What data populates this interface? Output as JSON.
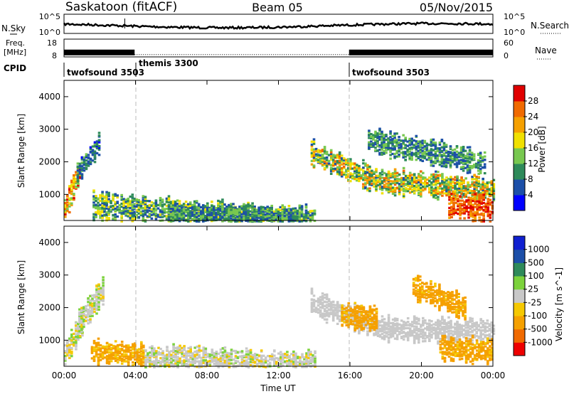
{
  "header": {
    "station": "Saskatoon (fitACF)",
    "beam": "Beam 05",
    "date": "05/Nov/2015"
  },
  "side_labels": {
    "nsky": "N.Sky",
    "nsky_ticks": [
      "10^5",
      "10^0"
    ],
    "nsearch": "N.Search",
    "nsearch_ticks": [
      "10^5",
      "10^0"
    ],
    "freq_line1": "Freq.",
    "freq_line2": "[MHz]",
    "freq_ticks": [
      "18",
      "8"
    ],
    "nave": "Nave",
    "nave_ticks": [
      "60",
      "0"
    ],
    "cpid": "CPID"
  },
  "cpid_segments": [
    {
      "name": "twofsound 3503",
      "start_hour": 0,
      "end_hour": 3.95
    },
    {
      "name": "themis 3300",
      "start_hour": 3.95,
      "end_hour": 15.95
    },
    {
      "name": "twofsound 3503",
      "start_hour": 15.95,
      "end_hour": 24
    }
  ],
  "colors": {
    "power": [
      "#0000ff",
      "#1c4fa8",
      "#2e8a5a",
      "#78c850",
      "#f0e000",
      "#f5a000",
      "#f06a00",
      "#e00000"
    ],
    "velocity": [
      "#ee0000",
      "#f06a00",
      "#f5a000",
      "#f5c800",
      "#c8c8c8",
      "#7cd23c",
      "#2e8a5a",
      "#1c4fa8",
      "#1020d0"
    ],
    "ground_scatter": "#c8c8c8"
  },
  "chart_data": [
    {
      "type": "line",
      "title": "",
      "xlabel": "",
      "ylabel": "N.Sky",
      "xlim": [
        0,
        24
      ],
      "series": [
        {
          "name": "N.Sky",
          "level": "high-variable"
        }
      ]
    },
    {
      "type": "bar",
      "xlabel": "",
      "ylabel": "Freq. [MHz]",
      "xlim": [
        0,
        24
      ],
      "ylim": [
        8,
        18
      ],
      "segments": [
        {
          "start_hour": 0,
          "end_hour": 3.95,
          "freq_mhz": 10.5,
          "style": "solid"
        },
        {
          "start_hour": 3.95,
          "end_hour": 15.95,
          "freq_mhz": 10.5,
          "style": "dotted"
        },
        {
          "start_hour": 15.95,
          "end_hour": 24,
          "freq_mhz": 10.5,
          "style": "solid"
        }
      ]
    },
    {
      "type": "heatmap",
      "variable": "power",
      "xlabel": "",
      "ylabel": "Slant Range [km]",
      "colorbar_label": "Power [dB]",
      "xlim": [
        0,
        24
      ],
      "ylim": [
        200,
        4500
      ],
      "yticks": [
        1000,
        2000,
        3000,
        4000
      ],
      "colorbar_ticks": [
        "4",
        "8",
        "12",
        "16",
        "20",
        "24",
        "28"
      ],
      "clim": [
        0,
        32
      ],
      "bands": [
        {
          "start_hour": 0.0,
          "end_hour": 0.9,
          "range_start": 600,
          "range_end": 1800,
          "value": 22,
          "spread": 9
        },
        {
          "start_hour": 0.7,
          "end_hour": 2.0,
          "range_start": 1700,
          "range_end": 2600,
          "value": 8,
          "spread": 5
        },
        {
          "start_hour": 1.6,
          "end_hour": 14.0,
          "range_start": 700,
          "range_end": 250,
          "value": 12,
          "spread": 7
        },
        {
          "start_hour": 13.8,
          "end_hour": 17.5,
          "range_start": 2300,
          "range_end": 1450,
          "value": 16,
          "spread": 10
        },
        {
          "start_hour": 17.5,
          "end_hour": 24.0,
          "range_start": 1450,
          "range_end": 1200,
          "value": 17,
          "spread": 10
        },
        {
          "start_hour": 21.5,
          "end_hour": 24.0,
          "range_start": 700,
          "range_end": 600,
          "value": 27,
          "spread": 4
        },
        {
          "start_hour": 17.0,
          "end_hour": 23.5,
          "range_start": 2700,
          "range_end": 2000,
          "value": 10,
          "spread": 6
        },
        {
          "start_hour": 5.8,
          "end_hour": 13.5,
          "range_start": 320,
          "range_end": 300,
          "value": 10,
          "spread": 6
        }
      ]
    },
    {
      "type": "heatmap",
      "variable": "velocity",
      "xlabel": "Time UT",
      "ylabel": "Slant Range [km]",
      "colorbar_label": "Velocity [m s^-1]",
      "xlim": [
        0,
        24
      ],
      "ylim": [
        200,
        4500
      ],
      "xticks": [
        "00:00",
        "04:00",
        "08:00",
        "12:00",
        "16:00",
        "20:00",
        "00:00"
      ],
      "yticks": [
        1000,
        2000,
        3000,
        4000
      ],
      "colorbar_ticks": [
        "-1000",
        "-500",
        "-100",
        "-25",
        "25",
        "100",
        "500",
        "1000"
      ],
      "bands": [
        {
          "start_hour": 0.0,
          "end_hour": 1.0,
          "range_start": 600,
          "range_end": 1600,
          "value": 0,
          "spread": 60
        },
        {
          "start_hour": 0.8,
          "end_hour": 2.2,
          "range_start": 1600,
          "range_end": 2600,
          "value": 0,
          "spread": 40
        },
        {
          "start_hour": 1.5,
          "end_hour": 4.5,
          "range_start": 700,
          "range_end": 550,
          "value": -150,
          "spread": 120
        },
        {
          "start_hour": 4.5,
          "end_hour": 14.0,
          "range_start": 500,
          "range_end": 300,
          "value": 0,
          "spread": 40
        },
        {
          "start_hour": 13.8,
          "end_hour": 17.5,
          "range_start": 2200,
          "range_end": 1450,
          "value": 0,
          "spread": 20
        },
        {
          "start_hour": 17.5,
          "end_hour": 24.0,
          "range_start": 1400,
          "range_end": 1300,
          "value": 0,
          "spread": 20
        },
        {
          "start_hour": 21.0,
          "end_hour": 24.0,
          "range_start": 800,
          "range_end": 700,
          "value": -200,
          "spread": 150
        },
        {
          "start_hour": 19.5,
          "end_hour": 22.5,
          "range_start": 2700,
          "range_end": 2000,
          "value": -250,
          "spread": 200
        },
        {
          "start_hour": 15.5,
          "end_hour": 17.5,
          "range_start": 1800,
          "range_end": 1700,
          "value": -180,
          "spread": 100
        }
      ]
    }
  ]
}
